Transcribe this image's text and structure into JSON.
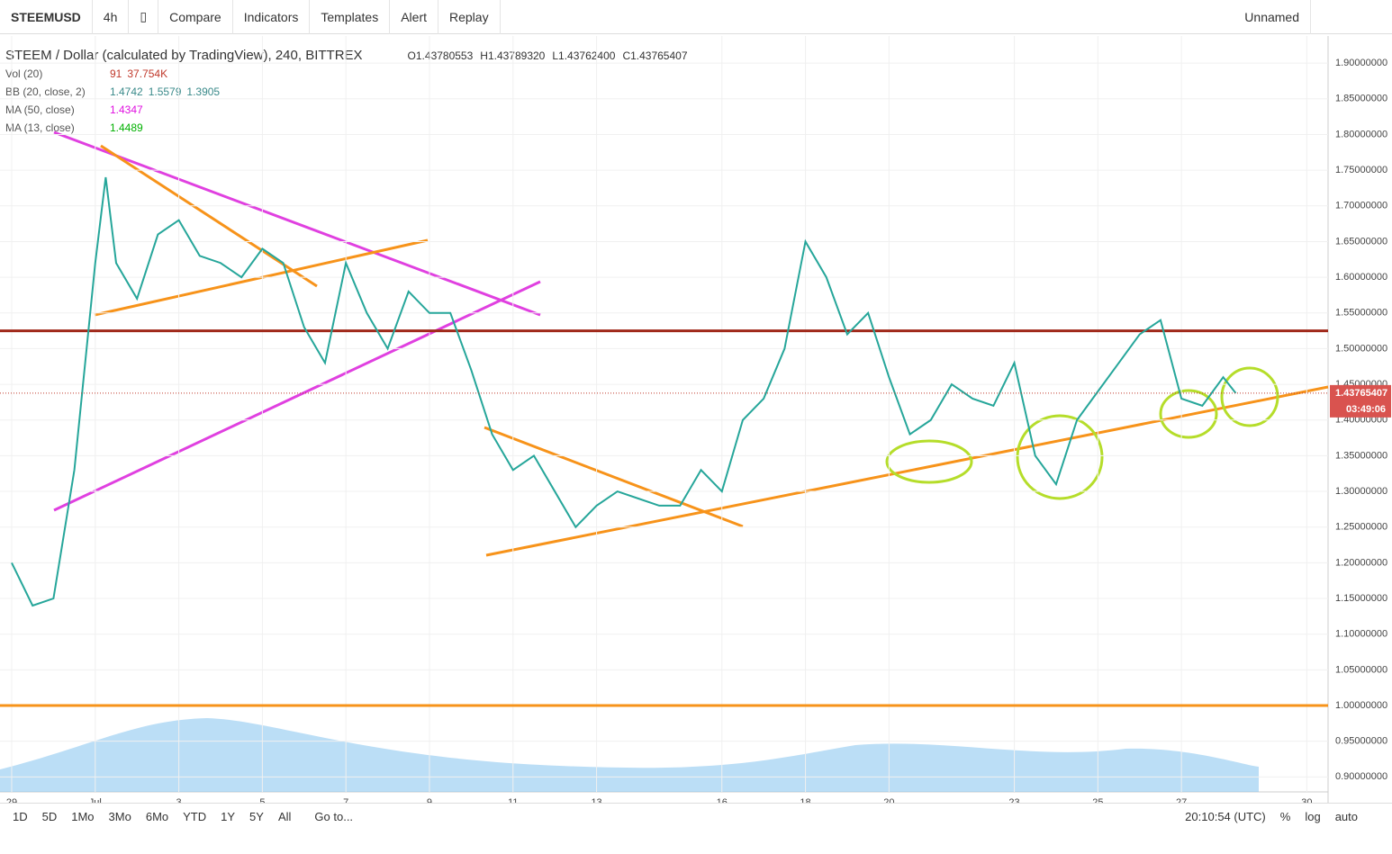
{
  "toolbar": {
    "symbol": "STEEMUSD",
    "interval": "4h",
    "items": [
      "Compare",
      "Indicators",
      "Templates",
      "Alert",
      "Replay"
    ],
    "layout": "Unnamed"
  },
  "legend": {
    "title": "STEEM / Dollar (calculated by TradingView), 240, BITTREX",
    "ohlc": [
      "O1.43780553",
      "H1.43789320",
      "L1.43762400",
      "C1.43765407"
    ],
    "indicators": [
      {
        "name": "Vol (20)",
        "values": [
          "91",
          "37.754K"
        ]
      },
      {
        "name": "BB (20, close, 2)",
        "values": [
          "1.4742",
          "1.5579",
          "1.3905"
        ]
      },
      {
        "name": "MA (50, close)",
        "values": [
          "1.4347"
        ]
      },
      {
        "name": "MA (13, close)",
        "values": [
          "1.4489"
        ]
      }
    ]
  },
  "chart_data": {
    "type": "line",
    "color": "#26a69a",
    "x": [
      -1,
      -0.5,
      0,
      0.5,
      1,
      1.25,
      1.5,
      2,
      2.5,
      3,
      3.5,
      4,
      4.5,
      5,
      5.5,
      6,
      6.5,
      7,
      7.5,
      8,
      8.5,
      9,
      9.5,
      10,
      10.5,
      11,
      11.5,
      12,
      12.5,
      13,
      13.5,
      14,
      14.5,
      15,
      15.5,
      16,
      16.5,
      17,
      17.5,
      18,
      18.5,
      19,
      19.5,
      20,
      20.5,
      21,
      21.5,
      22,
      22.5,
      23,
      23.5,
      24,
      24.5,
      25,
      25.5,
      26,
      26.5,
      27,
      27.5,
      28,
      28.3
    ],
    "values": [
      1.2,
      1.14,
      1.15,
      1.33,
      1.62,
      1.74,
      1.62,
      1.57,
      1.66,
      1.68,
      1.63,
      1.62,
      1.6,
      1.64,
      1.62,
      1.53,
      1.48,
      1.62,
      1.55,
      1.5,
      1.58,
      1.55,
      1.55,
      1.47,
      1.38,
      1.33,
      1.35,
      1.3,
      1.25,
      1.28,
      1.3,
      1.29,
      1.28,
      1.28,
      1.33,
      1.3,
      1.4,
      1.43,
      1.5,
      1.65,
      1.6,
      1.52,
      1.55,
      1.46,
      1.38,
      1.4,
      1.45,
      1.43,
      1.42,
      1.48,
      1.35,
      1.31,
      1.4,
      1.44,
      1.48,
      1.52,
      1.54,
      1.43,
      1.42,
      1.46,
      1.4377
    ],
    "xlim": [
      -1.28,
      30.51
    ],
    "xticks": [
      {
        "value": -1,
        "label": "29"
      },
      {
        "value": 1,
        "label": "Jul"
      },
      3,
      5,
      7,
      9,
      11,
      13,
      16,
      18,
      20,
      23,
      25,
      27,
      30
    ],
    "ylim": [
      0.879,
      1.938
    ],
    "yticks": [
      {
        "value": 0.9,
        "label": "0.90000000"
      },
      {
        "value": 0.95,
        "label": "0.95000000"
      },
      {
        "value": 1.0,
        "label": "1.00000000"
      },
      {
        "value": 1.05,
        "label": "1.05000000"
      },
      {
        "value": 1.1,
        "label": "1.10000000"
      },
      {
        "value": 1.15,
        "label": "1.15000000"
      },
      {
        "value": 1.2,
        "label": "1.20000000"
      },
      {
        "value": 1.25,
        "label": "1.25000000"
      },
      {
        "value": 1.3,
        "label": "1.30000000"
      },
      {
        "value": 1.35,
        "label": "1.35000000"
      },
      {
        "value": 1.4,
        "label": "1.40000000"
      },
      {
        "value": 1.45,
        "label": "1.45000000"
      },
      {
        "value": 1.5,
        "label": "1.50000000"
      },
      {
        "value": 1.55,
        "label": "1.55000000"
      },
      {
        "value": 1.6,
        "label": "1.60000000"
      },
      {
        "value": 1.65,
        "label": "1.65000000"
      },
      {
        "value": 1.7,
        "label": "1.70000000"
      },
      {
        "value": 1.75,
        "label": "1.75000000"
      },
      {
        "value": 1.8,
        "label": "1.80000000"
      },
      {
        "value": 1.85,
        "label": "1.85000000"
      },
      {
        "value": 1.9,
        "label": "1.90000000"
      }
    ],
    "grid": true,
    "hlines": [
      {
        "value": 1.525,
        "color": "#a0281a"
      },
      {
        "value": 1.0,
        "color": "#f7931a"
      }
    ],
    "last_price": {
      "value": 1.43765407,
      "label": "1.43765407"
    },
    "countdown": "03:49:06"
  },
  "bottom_bar": {
    "ranges": [
      "1D",
      "5D",
      "1Mo",
      "3Mo",
      "6Mo",
      "YTD",
      "1Y",
      "5Y",
      "All"
    ],
    "goto": "Go to...",
    "time": "20:10:54 (UTC)",
    "options": [
      "%",
      "log",
      "auto"
    ]
  }
}
